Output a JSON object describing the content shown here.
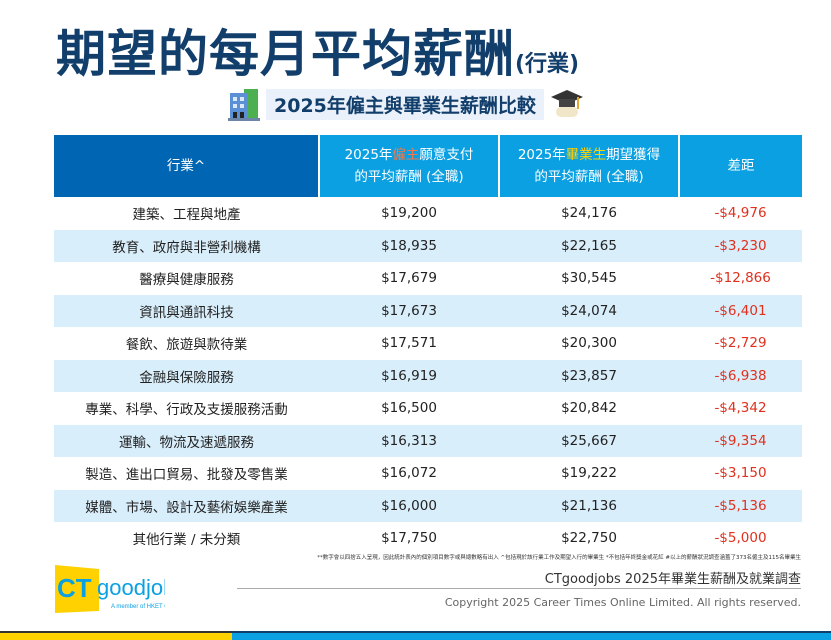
{
  "title": {
    "main": "期望的每月平均薪酬",
    "suffix": "(行業)"
  },
  "subtitle": "2025年僱主與畢業生薪酬比較",
  "table": {
    "headers": {
      "industry": "行業^",
      "employer_pre": "2025年",
      "employer_hl": "僱主",
      "employer_post": "願意支付",
      "employer_line2": "的平均薪酬 (全職)",
      "grad_pre": "2025年",
      "grad_hl": "畢業生",
      "grad_post": "期望獲得",
      "grad_line2": "的平均薪酬 (全職)",
      "gap": "差距"
    },
    "rows": [
      [
        "建築、工程與地產",
        "$19,200",
        "$24,176",
        "-$4,976"
      ],
      [
        "教育、政府與非營利機構",
        "$18,935",
        "$22,165",
        "-$3,230"
      ],
      [
        "醫療與健康服務",
        "$17,679",
        "$30,545",
        "-$12,866"
      ],
      [
        "資訊與通訊科技",
        "$17,673",
        "$24,074",
        "-$6,401"
      ],
      [
        "餐飲、旅遊與款待業",
        "$17,571",
        "$20,300",
        "-$2,729"
      ],
      [
        "金融與保險服務",
        "$16,919",
        "$23,857",
        "-$6,938"
      ],
      [
        "專業、科學、行政及支援服務活動",
        "$16,500",
        "$20,842",
        "-$4,342"
      ],
      [
        "運輸、物流及速遞服務",
        "$16,313",
        "$25,667",
        "-$9,354"
      ],
      [
        "製造、進出口貿易、批發及零售業",
        "$16,072",
        "$19,222",
        "-$3,150"
      ],
      [
        "媒體、市場、設計及藝術娛樂產業",
        "$16,000",
        "$21,136",
        "-$5,136"
      ],
      [
        "其他行業 / 未分類",
        "$17,750",
        "$22,750",
        "-$5,000"
      ]
    ]
  },
  "footnote": "**數字會以四捨五入呈現，因此統計表內的個別項目數字或與總數略有出入  ^包括現於該行業工作及期望入行的畢業生  *不包括年終獎金或花紅  #以上的薪酬狀況調查涵蓋了373名僱主及115名畢業生",
  "logo": {
    "ct": "CT",
    "goodjobs": "goodjobs",
    "tagline": "A member of HKET Group"
  },
  "survey": "CTgoodjobs 2025年畢業生薪酬及就業調查",
  "copyright": "Copyright 2025 Career Times Online Limited. All rights reserved.",
  "colors": {
    "navy": "#123e6b",
    "blue": "#0066b3",
    "cyan": "#0aa0e2",
    "red": "#e0301e",
    "yellow": "#ffd100"
  }
}
